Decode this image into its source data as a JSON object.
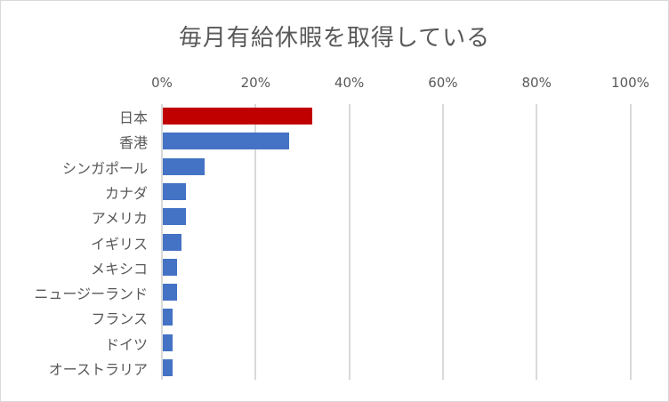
{
  "chart_data": {
    "type": "bar",
    "orientation": "horizontal",
    "title": "毎月有給休暇を取得している",
    "xlabel": "",
    "ylabel": "",
    "xlim": [
      0,
      100
    ],
    "x_ticks": [
      "0%",
      "20%",
      "40%",
      "60%",
      "80%",
      "100%"
    ],
    "x_axis_position": "top",
    "grid": true,
    "legend": null,
    "categories": [
      "日本",
      "香港",
      "シンガポール",
      "カナダ",
      "アメリカ",
      "イギリス",
      "メキシコ",
      "ニュージーランド",
      "フランス",
      "ドイツ",
      "オーストラリア"
    ],
    "values": [
      32,
      27,
      9,
      5,
      5,
      4,
      3,
      3,
      2,
      2,
      2
    ],
    "unit": "%",
    "colors": {
      "highlight": "#c00000",
      "default": "#4472c4",
      "grid": "#d9d9d9",
      "text": "#595959"
    },
    "highlighted_category": "日本"
  }
}
